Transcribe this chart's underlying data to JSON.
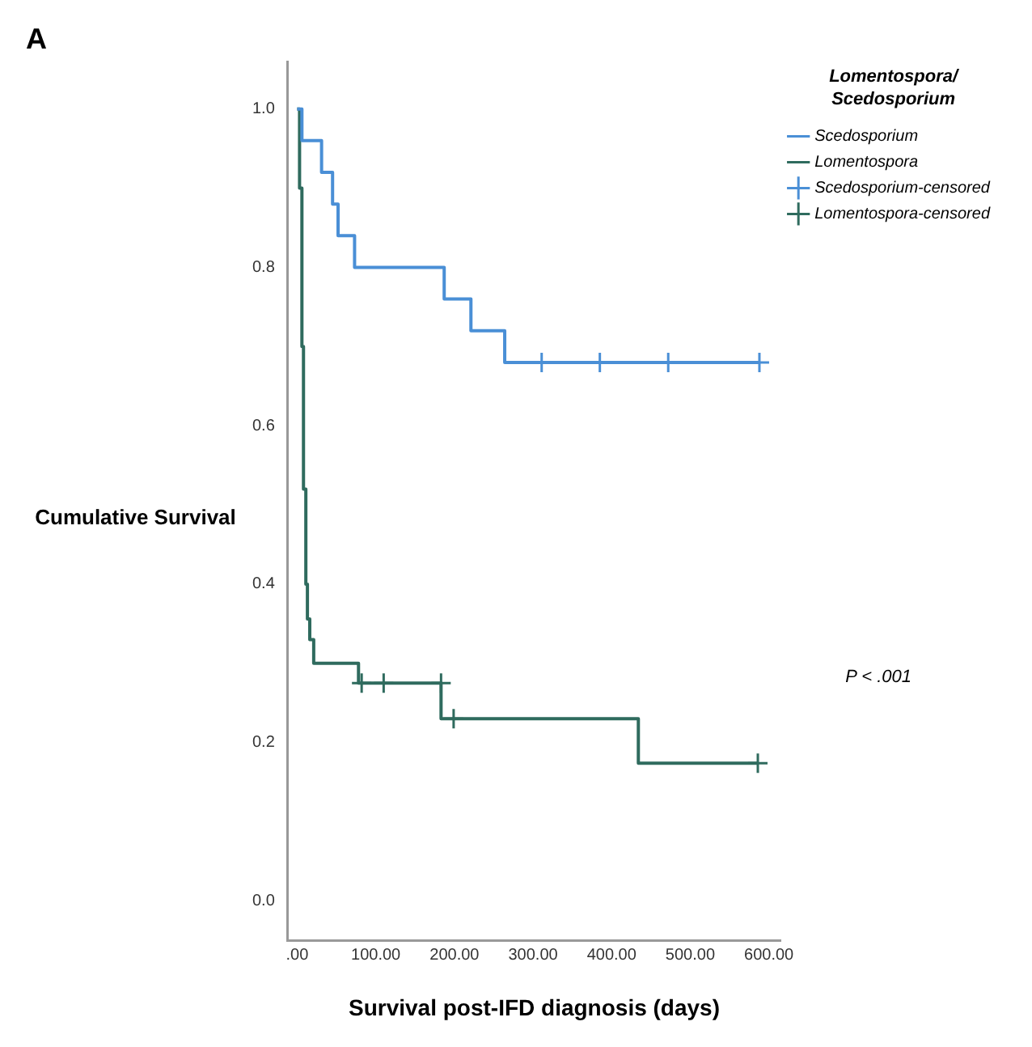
{
  "chart_data": {
    "type": "step",
    "xlabel": "Survival post-IFD diagnosis (days)",
    "ylabel": "Cumulative Survival",
    "legend_title": "Lomentospora/ Scedosporium",
    "annotations": [
      "A",
      "P < .001"
    ],
    "xlim": [
      -12,
      615
    ],
    "xticks": [
      {
        "value": 0,
        "label": ".00"
      },
      {
        "value": 100,
        "label": "100.00"
      },
      {
        "value": 200,
        "label": "200.00"
      },
      {
        "value": 300,
        "label": "300.00"
      },
      {
        "value": 400,
        "label": "400.00"
      },
      {
        "value": 500,
        "label": "500.00"
      },
      {
        "value": 600,
        "label": "600.00"
      }
    ],
    "ylim": [
      -0.05,
      1.06
    ],
    "yticks": [
      {
        "value": 0,
        "label": "0.0"
      },
      {
        "value": 0.2,
        "label": "0.2"
      },
      {
        "value": 0.4,
        "label": "0.4"
      },
      {
        "value": 0.6,
        "label": "0.6"
      },
      {
        "value": 0.8,
        "label": "0.8"
      },
      {
        "value": 1,
        "label": "1.0"
      }
    ],
    "grid": false,
    "legend": "right",
    "series": [
      {
        "name": "Scedosporium",
        "type": "step",
        "marker": "none",
        "color": "#4a8fd6",
        "x": [
          0,
          6,
          31,
          45,
          52,
          73,
          187,
          221,
          264,
          588
        ],
        "values": [
          1,
          0.96,
          0.92,
          0.88,
          0.84,
          0.8,
          0.76,
          0.72,
          0.68,
          0.68
        ]
      },
      {
        "name": "Lomentospora",
        "type": "step",
        "marker": "none",
        "color": "#2f6b5e",
        "x": [
          0,
          3,
          6,
          8,
          11,
          13,
          16,
          21,
          78,
          183,
          434,
          586
        ],
        "values": [
          1,
          0.9,
          0.7,
          0.52,
          0.4,
          0.356,
          0.33,
          0.3,
          0.275,
          0.23,
          0.174,
          0.174
        ]
      },
      {
        "name": "Scedosporium-censored",
        "type": "scatter",
        "marker": "cross",
        "color": "#4a8fd6",
        "x": [
          311,
          385,
          472,
          588
        ],
        "values": [
          0.68,
          0.68,
          0.68,
          0.68
        ]
      },
      {
        "name": "Lomentospora-censored",
        "type": "scatter",
        "marker": "cross",
        "color": "#2f6b5e",
        "x": [
          82,
          110,
          183,
          199,
          586
        ],
        "values": [
          0.275,
          0.275,
          0.275,
          0.23,
          0.174
        ]
      }
    ]
  }
}
